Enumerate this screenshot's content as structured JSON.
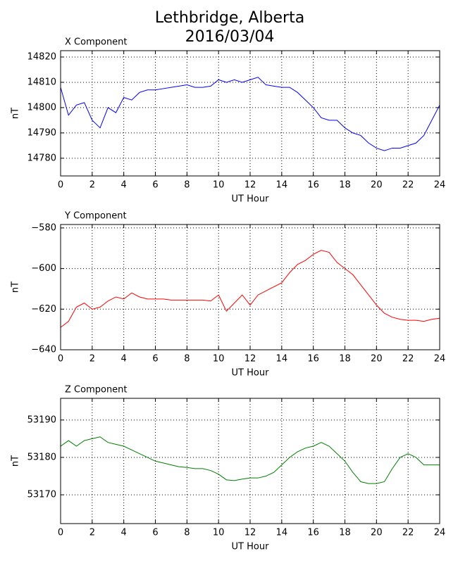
{
  "title": "Lethbridge, Alberta",
  "subtitle": "2016/03/04",
  "chart_data": [
    {
      "type": "line",
      "title": "X Component",
      "xlabel": "UT Hour",
      "ylabel": "nT",
      "grid": true,
      "x": [
        0,
        0.5,
        1,
        1.5,
        2,
        2.5,
        3,
        3.5,
        4,
        4.5,
        5,
        5.5,
        6,
        6.5,
        7,
        7.5,
        8,
        8.5,
        9,
        9.5,
        10,
        10.5,
        11,
        11.5,
        12,
        12.5,
        13,
        13.5,
        14,
        14.5,
        15,
        15.5,
        16,
        16.5,
        17,
        17.5,
        18,
        18.5,
        19,
        19.5,
        20,
        20.5,
        21,
        21.5,
        22,
        22.5,
        23,
        23.5,
        24
      ],
      "series": [
        {
          "color": "#0000ff",
          "values": [
            14808,
            14797,
            14801,
            14802,
            14795,
            14792,
            14800,
            14798,
            14804,
            14803,
            14806,
            14807,
            14807,
            14807.5,
            14808,
            14808.5,
            14809,
            14808,
            14808,
            14808.5,
            14811,
            14810,
            14811,
            14810,
            14811,
            14812,
            14809,
            14808.5,
            14808,
            14808,
            14806,
            14803,
            14800,
            14796,
            14795,
            14795,
            14792,
            14790,
            14789,
            14786,
            14784,
            14783,
            14784,
            14784,
            14785,
            14786,
            14789,
            14795,
            14801
          ]
        }
      ],
      "xlim": [
        0,
        24
      ],
      "xticks": [
        0,
        2,
        4,
        6,
        8,
        10,
        12,
        14,
        16,
        18,
        20,
        22,
        24
      ],
      "ylim": [
        14773,
        14822.5
      ],
      "yticks": [
        14780,
        14790,
        14800,
        14810,
        14820
      ]
    },
    {
      "type": "line",
      "title": "Y Component",
      "xlabel": "UT Hour",
      "ylabel": "nT",
      "grid": true,
      "x": [
        0,
        0.5,
        1,
        1.5,
        2,
        2.5,
        3,
        3.5,
        4,
        4.5,
        5,
        5.5,
        6,
        6.5,
        7,
        7.5,
        8,
        8.5,
        9,
        9.5,
        10,
        10.5,
        11,
        11.5,
        12,
        12.5,
        13,
        13.5,
        14,
        14.5,
        15,
        15.5,
        16,
        16.5,
        17,
        17.5,
        18,
        18.5,
        19,
        19.5,
        20,
        20.5,
        21,
        21.5,
        22,
        22.5,
        23,
        23.5,
        24
      ],
      "series": [
        {
          "color": "#ff0000",
          "values": [
            -629,
            -626,
            -619,
            -617,
            -620,
            -619,
            -616,
            -614,
            -615,
            -612,
            -614,
            -615,
            -615,
            -615,
            -615.5,
            -615.5,
            -615.5,
            -615.5,
            -615.5,
            -616,
            -613,
            -621,
            -617,
            -613,
            -618,
            -613,
            -611,
            -609,
            -607,
            -602,
            -598,
            -596,
            -593,
            -591,
            -592,
            -597,
            -600,
            -603,
            -608,
            -613,
            -618,
            -622,
            -624,
            -625,
            -625.5,
            -625.5,
            -626,
            -625,
            -624.5
          ]
        }
      ],
      "xlim": [
        0,
        24
      ],
      "xticks": [
        0,
        2,
        4,
        6,
        8,
        10,
        12,
        14,
        16,
        18,
        20,
        22,
        24
      ],
      "ylim": [
        -640,
        -578.3
      ],
      "yticks": [
        {
          "value": -640,
          "label": "−640"
        },
        {
          "value": -620,
          "label": "−620"
        },
        {
          "value": -600,
          "label": "−600"
        },
        {
          "value": -580,
          "label": "−580"
        }
      ]
    },
    {
      "type": "line",
      "title": "Z Component",
      "xlabel": "UT Hour",
      "ylabel": "nT",
      "grid": true,
      "x": [
        0,
        0.5,
        1,
        1.5,
        2,
        2.5,
        3,
        3.5,
        4,
        4.5,
        5,
        5.5,
        6,
        6.5,
        7,
        7.5,
        8,
        8.5,
        9,
        9.5,
        10,
        10.5,
        11,
        11.5,
        12,
        12.5,
        13,
        13.5,
        14,
        14.5,
        15,
        15.5,
        16,
        16.5,
        17,
        17.5,
        18,
        18.5,
        19,
        19.5,
        20,
        20.5,
        21,
        21.5,
        22,
        22.5,
        23,
        23.5,
        24
      ],
      "series": [
        {
          "color": "#008000",
          "values": [
            53183,
            53184.5,
            53183,
            53184.5,
            53185,
            53185.5,
            53184,
            53183.5,
            53183,
            53182,
            53181,
            53180,
            53179,
            53178.5,
            53178,
            53177.5,
            53177.3,
            53177,
            53177,
            53176.5,
            53175.5,
            53174,
            53173.8,
            53174.2,
            53174.5,
            53174.5,
            53175,
            53176,
            53178,
            53180,
            53181.5,
            53182.5,
            53183,
            53184,
            53183,
            53181,
            53179,
            53176,
            53173.5,
            53173,
            53173,
            53173.5,
            53177,
            53180,
            53181,
            53180,
            53178,
            53178,
            53178
          ]
        }
      ],
      "xlim": [
        0,
        24
      ],
      "xticks": [
        0,
        2,
        4,
        6,
        8,
        10,
        12,
        14,
        16,
        18,
        20,
        22,
        24
      ],
      "ylim": [
        53162.3,
        53195.8
      ],
      "yticks": [
        53170,
        53180,
        53190
      ]
    }
  ]
}
